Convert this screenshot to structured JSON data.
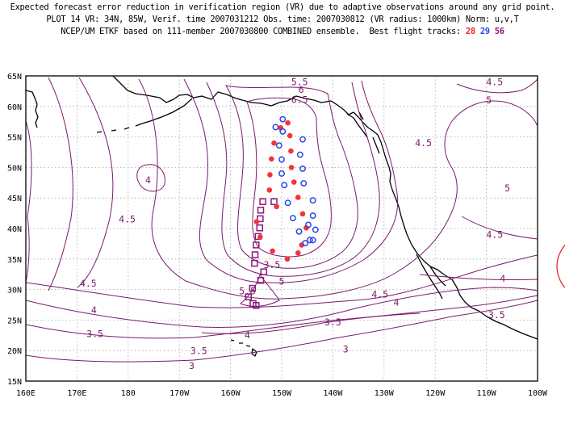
{
  "header": {
    "line1": "Expected forecast error reduction in verification region (VR) due to adaptive observations around any grid point.",
    "line2": "PLOT 14 VR: 34N, 85W, Verif. time 2007031212 Obs. time: 2007030812 (VR radius: 1000km) Norm: u,v,T",
    "line3_prefix": "NCEP/UM ETKF based on 111-member 2007030800 COMBINED ensemble.  Best flight tracks:",
    "track_a": "28",
    "track_b": "29",
    "track_c": "56"
  },
  "map": {
    "lon_range": [
      160,
      260
    ],
    "lat_range": [
      15,
      65
    ],
    "lon_ticks": [
      "160E",
      "170E",
      "180",
      "170W",
      "160W",
      "150W",
      "140W",
      "130W",
      "120W",
      "110W",
      "100W"
    ],
    "lat_ticks": [
      "15N",
      "20N",
      "25N",
      "30N",
      "35N",
      "40N",
      "45N",
      "50N",
      "55N",
      "60N",
      "65N"
    ],
    "grid": "dotted",
    "colors": {
      "contour": "#7b1a6e",
      "track_red": "#f4333a",
      "track_blue": "#2b46e6",
      "track_purple": "#8a1a7a",
      "coast": "#000000"
    },
    "contour_labels": [
      {
        "text": "5.5",
        "lon": 213.5,
        "lat": 63.5
      },
      {
        "text": "6",
        "lon": 213.8,
        "lat": 62.2
      },
      {
        "text": "6.5",
        "lon": 213.5,
        "lat": 60.6
      },
      {
        "text": "4.5",
        "lon": 251.6,
        "lat": 63.5
      },
      {
        "text": "5",
        "lon": 250.5,
        "lat": 60.5
      },
      {
        "text": "4.5",
        "lon": 237.7,
        "lat": 53.5
      },
      {
        "text": "4",
        "lon": 183.9,
        "lat": 47.4
      },
      {
        "text": "5",
        "lon": 254.1,
        "lat": 46.1
      },
      {
        "text": "4.5",
        "lon": 179.8,
        "lat": 41.0
      },
      {
        "text": "4.5",
        "lon": 251.6,
        "lat": 38.5
      },
      {
        "text": "4",
        "lon": 253.2,
        "lat": 31.3
      },
      {
        "text": "4.5",
        "lon": 172.2,
        "lat": 30.5
      },
      {
        "text": "4.5",
        "lon": 229.2,
        "lat": 28.7
      },
      {
        "text": "4",
        "lon": 232.4,
        "lat": 27.4
      },
      {
        "text": "4",
        "lon": 173.3,
        "lat": 26.1
      },
      {
        "text": "3.5",
        "lon": 252.0,
        "lat": 25.3
      },
      {
        "text": "3.5",
        "lon": 173.5,
        "lat": 22.2
      },
      {
        "text": "3.5",
        "lon": 220.0,
        "lat": 24.1
      },
      {
        "text": "4",
        "lon": 203.3,
        "lat": 22.0
      },
      {
        "text": "3.5",
        "lon": 193.8,
        "lat": 19.4
      },
      {
        "text": "3",
        "lon": 222.5,
        "lat": 19.7
      },
      {
        "text": "3",
        "lon": 192.4,
        "lat": 17.0
      },
      {
        "text": "3.5",
        "lon": 208.1,
        "lat": 33.5
      },
      {
        "text": "5",
        "lon": 210.0,
        "lat": 30.8
      },
      {
        "text": "5.5",
        "lon": 203.3,
        "lat": 29.2
      }
    ],
    "track_red": [
      {
        "lon": 209.8,
        "lat": 56.5
      },
      {
        "lon": 211.2,
        "lat": 57.3
      },
      {
        "lon": 211.6,
        "lat": 55.2
      },
      {
        "lon": 208.5,
        "lat": 54.0
      },
      {
        "lon": 211.8,
        "lat": 52.7
      },
      {
        "lon": 208.0,
        "lat": 51.4
      },
      {
        "lon": 211.9,
        "lat": 50.0
      },
      {
        "lon": 207.7,
        "lat": 48.8
      },
      {
        "lon": 212.4,
        "lat": 47.6
      },
      {
        "lon": 207.6,
        "lat": 46.3
      },
      {
        "lon": 213.2,
        "lat": 45.1
      },
      {
        "lon": 209.0,
        "lat": 43.6
      },
      {
        "lon": 214.1,
        "lat": 42.4
      },
      {
        "lon": 205.1,
        "lat": 41.1
      },
      {
        "lon": 214.8,
        "lat": 40.1
      },
      {
        "lon": 205.8,
        "lat": 38.6
      },
      {
        "lon": 213.9,
        "lat": 37.3
      },
      {
        "lon": 208.2,
        "lat": 36.3
      },
      {
        "lon": 211.1,
        "lat": 35.0
      },
      {
        "lon": 213.2,
        "lat": 36.0
      }
    ],
    "track_blue": [
      {
        "lon": 210.2,
        "lat": 57.9
      },
      {
        "lon": 208.8,
        "lat": 56.6
      },
      {
        "lon": 210.2,
        "lat": 55.9
      },
      {
        "lon": 214.1,
        "lat": 54.6
      },
      {
        "lon": 209.5,
        "lat": 53.6
      },
      {
        "lon": 213.6,
        "lat": 52.1
      },
      {
        "lon": 210.0,
        "lat": 51.3
      },
      {
        "lon": 214.1,
        "lat": 49.8
      },
      {
        "lon": 210.0,
        "lat": 49.0
      },
      {
        "lon": 214.3,
        "lat": 47.4
      },
      {
        "lon": 210.5,
        "lat": 47.1
      },
      {
        "lon": 216.1,
        "lat": 44.6
      },
      {
        "lon": 211.2,
        "lat": 44.2
      },
      {
        "lon": 216.1,
        "lat": 42.1
      },
      {
        "lon": 212.2,
        "lat": 41.7
      },
      {
        "lon": 215.2,
        "lat": 40.6
      },
      {
        "lon": 216.6,
        "lat": 39.8
      },
      {
        "lon": 213.4,
        "lat": 39.5
      },
      {
        "lon": 216.1,
        "lat": 38.1
      },
      {
        "lon": 215.5,
        "lat": 38.1
      },
      {
        "lon": 214.6,
        "lat": 37.6
      }
    ],
    "track_purple": [
      {
        "lon": 206.3,
        "lat": 44.4
      },
      {
        "lon": 208.5,
        "lat": 44.4
      },
      {
        "lon": 205.9,
        "lat": 43.0
      },
      {
        "lon": 205.8,
        "lat": 41.6
      },
      {
        "lon": 205.7,
        "lat": 40.1
      },
      {
        "lon": 205.4,
        "lat": 38.7
      },
      {
        "lon": 205.0,
        "lat": 37.3
      },
      {
        "lon": 204.8,
        "lat": 35.7
      },
      {
        "lon": 204.7,
        "lat": 34.3
      },
      {
        "lon": 206.5,
        "lat": 32.9
      },
      {
        "lon": 205.9,
        "lat": 31.5
      },
      {
        "lon": 204.3,
        "lat": 30.2
      },
      {
        "lon": 203.5,
        "lat": 28.8
      },
      {
        "lon": 204.4,
        "lat": 27.7
      },
      {
        "lon": 205.0,
        "lat": 27.4
      }
    ]
  }
}
